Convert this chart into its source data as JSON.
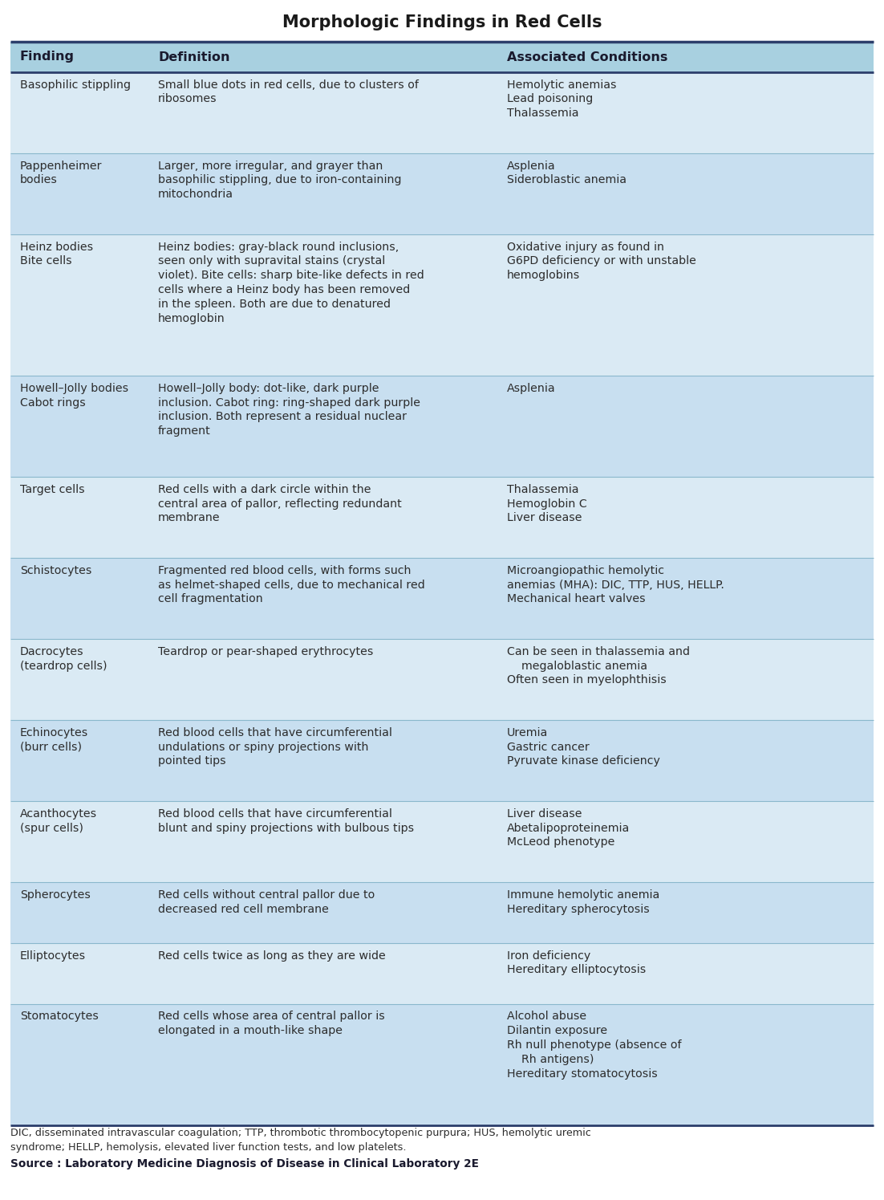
{
  "title": "Morphologic Findings in Red Cells",
  "title_fontsize": 15,
  "background_color": "#ffffff",
  "header_bg": "#a8d0e0",
  "row_bg_even": "#daeaf4",
  "row_bg_odd": "#c8dff0",
  "header_text_color": "#1a1a2e",
  "body_text_color": "#2c2c2c",
  "border_color": "#2c3e6b",
  "divider_color": "#8ab8cc",
  "headers": [
    "Finding",
    "Definition",
    "Associated Conditions"
  ],
  "header_fontsize": 11.5,
  "body_fontsize": 10.2,
  "footnote_fontsize": 9.2,
  "source_fontsize": 9.8,
  "rows": [
    {
      "finding": "Basophilic stippling",
      "definition": "Small blue dots in red cells, due to clusters of\nribosomes",
      "conditions": "Hemolytic anemias\nLead poisoning\nThalassemia"
    },
    {
      "finding": "Pappenheimer\nbodies",
      "definition": "Larger, more irregular, and grayer than\nbasophilic stippling, due to iron-containing\nmitochondria",
      "conditions": "Asplenia\nSideroblastic anemia"
    },
    {
      "finding": "Heinz bodies\nBite cells",
      "definition": "Heinz bodies: gray-black round inclusions,\nseen only with supravital stains (crystal\nviolet). Bite cells: sharp bite-like defects in red\ncells where a Heinz body has been removed\nin the spleen. Both are due to denatured\nhemoglobin",
      "conditions": "Oxidative injury as found in\nG6PD deficiency or with unstable\nhemoglobins"
    },
    {
      "finding": "Howell–Jolly bodies\nCabot rings",
      "definition": "Howell–Jolly body: dot-like, dark purple\ninclusion. Cabot ring: ring-shaped dark purple\ninclusion. Both represent a residual nuclear\nfragment",
      "conditions": "Asplenia"
    },
    {
      "finding": "Target cells",
      "definition": "Red cells with a dark circle within the\ncentral area of pallor, reflecting redundant\nmembrane",
      "conditions": "Thalassemia\nHemoglobin C\nLiver disease"
    },
    {
      "finding": "Schistocytes",
      "definition": "Fragmented red blood cells, with forms such\nas helmet-shaped cells, due to mechanical red\ncell fragmentation",
      "conditions": "Microangiopathic hemolytic\nanemias (MHA): DIC, TTP, HUS, HELLP.\nMechanical heart valves"
    },
    {
      "finding": "Dacrocytes\n(teardrop cells)",
      "definition": "Teardrop or pear-shaped erythrocytes",
      "conditions": "Can be seen in thalassemia and\n    megaloblastic anemia\nOften seen in myelophthisis"
    },
    {
      "finding": "Echinocytes\n(burr cells)",
      "definition": "Red blood cells that have circumferential\nundulations or spiny projections with\npointed tips",
      "conditions": "Uremia\nGastric cancer\nPyruvate kinase deficiency"
    },
    {
      "finding": "Acanthocytes\n(spur cells)",
      "definition": "Red blood cells that have circumferential\nblunt and spiny projections with bulbous tips",
      "conditions": "Liver disease\nAbetalipoproteinemia\nMcLeod phenotype"
    },
    {
      "finding": "Spherocytes",
      "definition": "Red cells without central pallor due to\ndecreased red cell membrane",
      "conditions": "Immune hemolytic anemia\nHereditary spherocytosis"
    },
    {
      "finding": "Elliptocytes",
      "definition": "Red cells twice as long as they are wide",
      "conditions": "Iron deficiency\nHereditary elliptocytosis"
    },
    {
      "finding": "Stomatocytes",
      "definition": "Red cells whose area of central pallor is\nelongated in a mouth-like shape",
      "conditions": "Alcohol abuse\nDilantin exposure\nRh null phenotype (absence of\n    Rh antigens)\nHereditary stomatocytosis"
    }
  ],
  "footnote": "DIC, disseminated intravascular coagulation; TTP, thrombotic thrombocytopenic purpura; HUS, hemolytic uremic\nsyndrome; HELLP, hemolysis, elevated liver function tests, and low platelets.",
  "source": "Source : Laboratory Medicine Diagnosis of Disease in Clinical Laboratory 2E"
}
